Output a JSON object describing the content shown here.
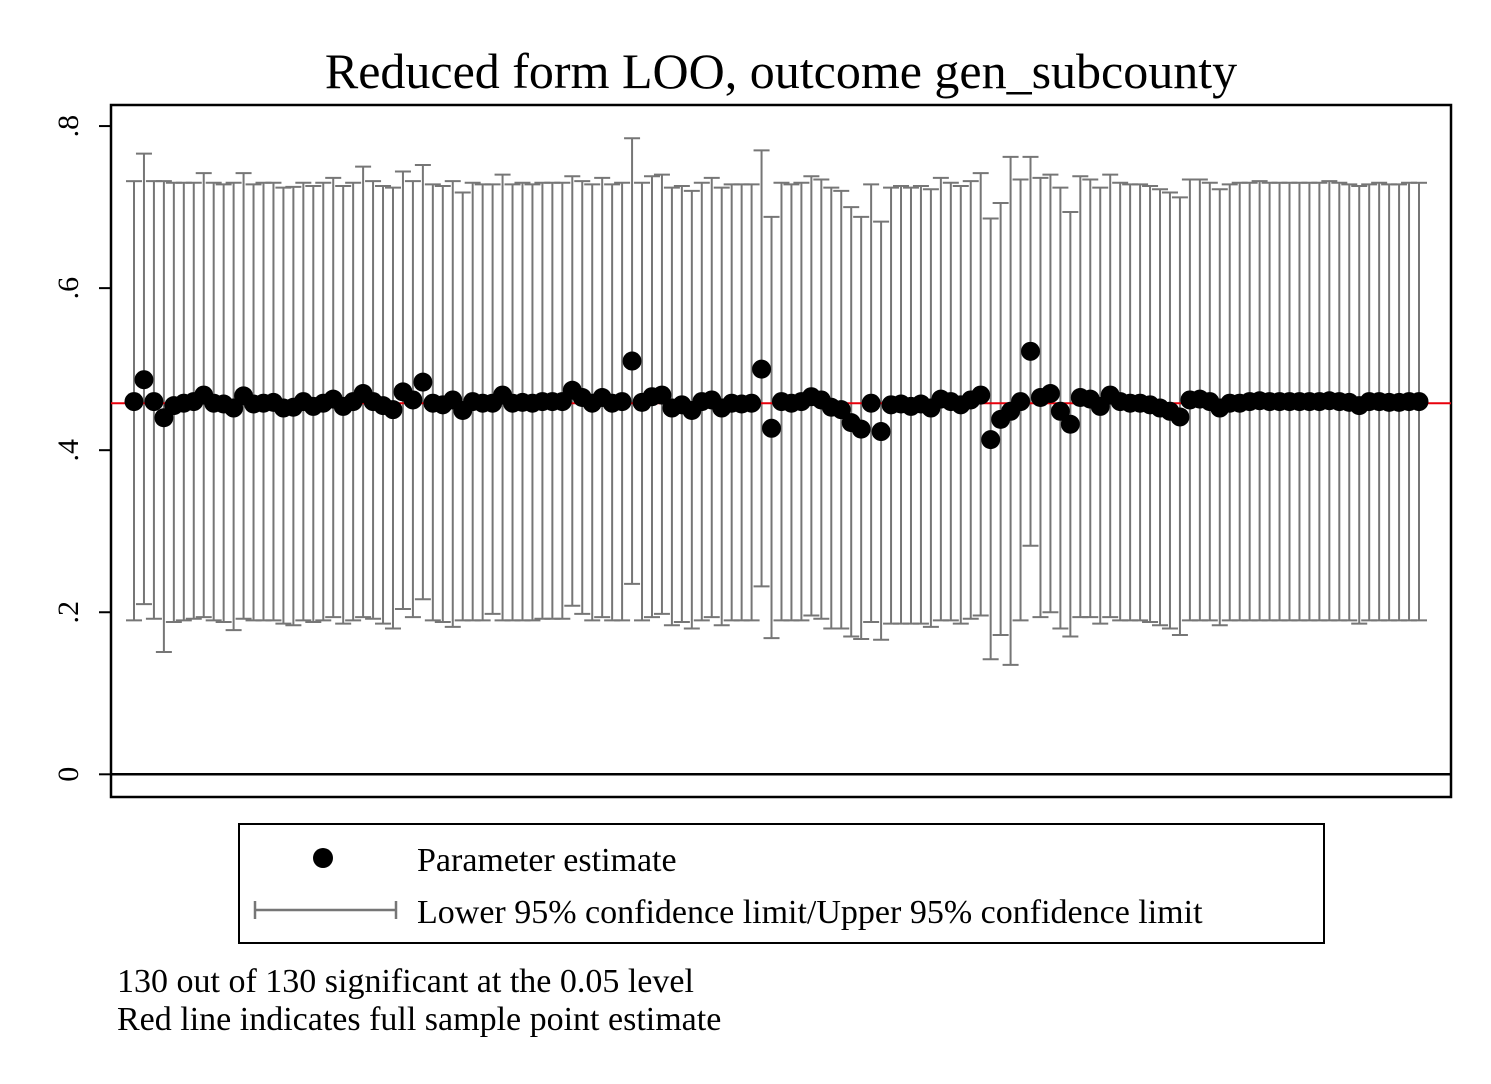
{
  "chart_data": {
    "type": "scatter",
    "title": "Reduced form LOO, outcome gen_subcounty",
    "xlabel": "",
    "ylabel": "",
    "ylim": [
      -0.028,
      0.826
    ],
    "y_ticks": [
      {
        "value": 0,
        "label": "0"
      },
      {
        "value": 0.2,
        "label": ".2"
      },
      {
        "value": 0.4,
        "label": ".4"
      },
      {
        "value": 0.6,
        "label": ".6"
      },
      {
        "value": 0.8,
        "label": ".8"
      }
    ],
    "x_range": [
      1,
      130
    ],
    "reference_line": {
      "value": 0.458,
      "color": "#e8000b"
    },
    "zero_line": {
      "value": 0,
      "color": "#000000"
    },
    "series": [
      {
        "name": "Parameter estimate",
        "marker": "circle",
        "color": "#000000",
        "values": [
          0.46,
          0.487,
          0.46,
          0.44,
          0.455,
          0.458,
          0.46,
          0.468,
          0.458,
          0.457,
          0.452,
          0.467,
          0.457,
          0.458,
          0.459,
          0.452,
          0.453,
          0.46,
          0.454,
          0.458,
          0.463,
          0.454,
          0.46,
          0.47,
          0.46,
          0.455,
          0.45,
          0.472,
          0.462,
          0.484,
          0.458,
          0.456,
          0.462,
          0.449,
          0.46,
          0.458,
          0.458,
          0.468,
          0.458,
          0.459,
          0.458,
          0.46,
          0.46,
          0.46,
          0.474,
          0.465,
          0.458,
          0.465,
          0.458,
          0.46,
          0.51,
          0.459,
          0.466,
          0.468,
          0.452,
          0.456,
          0.449,
          0.46,
          0.462,
          0.452,
          0.458,
          0.457,
          0.458,
          0.5,
          0.427,
          0.46,
          0.458,
          0.46,
          0.466,
          0.462,
          0.453,
          0.45,
          0.434,
          0.426,
          0.458,
          0.423,
          0.456,
          0.457,
          0.454,
          0.457,
          0.452,
          0.463,
          0.46,
          0.456,
          0.462,
          0.468,
          0.413,
          0.438,
          0.448,
          0.46,
          0.522,
          0.465,
          0.47,
          0.448,
          0.432,
          0.465,
          0.463,
          0.454,
          0.468,
          0.46,
          0.458,
          0.458,
          0.456,
          0.452,
          0.448,
          0.441,
          0.462,
          0.463,
          0.46,
          0.452,
          0.458,
          0.458,
          0.46,
          0.461,
          0.46,
          0.46,
          0.46,
          0.46,
          0.46,
          0.46,
          0.461,
          0.46,
          0.459,
          0.455,
          0.46,
          0.46,
          0.459,
          0.459,
          0.46,
          0.46
        ]
      },
      {
        "name": "Lower 95% confidence limit/Upper 95% confidence limit",
        "marker": "capped-range",
        "color": "#767676",
        "lower": [
          0.19,
          0.21,
          0.192,
          0.151,
          0.188,
          0.19,
          0.192,
          0.194,
          0.19,
          0.188,
          0.178,
          0.192,
          0.19,
          0.19,
          0.19,
          0.186,
          0.184,
          0.19,
          0.188,
          0.19,
          0.194,
          0.186,
          0.19,
          0.194,
          0.192,
          0.186,
          0.18,
          0.204,
          0.194,
          0.216,
          0.19,
          0.188,
          0.182,
          0.19,
          0.19,
          0.19,
          0.198,
          0.19,
          0.19,
          0.19,
          0.19,
          0.192,
          0.192,
          0.192,
          0.208,
          0.198,
          0.19,
          0.194,
          0.19,
          0.19,
          0.235,
          0.19,
          0.194,
          0.198,
          0.184,
          0.188,
          0.18,
          0.19,
          0.194,
          0.184,
          0.19,
          0.19,
          0.19,
          0.232,
          0.168,
          0.19,
          0.19,
          0.19,
          0.196,
          0.192,
          0.18,
          0.18,
          0.17,
          0.167,
          0.188,
          0.166,
          0.186,
          0.186,
          0.186,
          0.186,
          0.182,
          0.19,
          0.19,
          0.186,
          0.192,
          0.196,
          0.142,
          0.172,
          0.135,
          0.19,
          0.282,
          0.194,
          0.2,
          0.18,
          0.17,
          0.194,
          0.194,
          0.186,
          0.194,
          0.19,
          0.19,
          0.19,
          0.188,
          0.184,
          0.18,
          0.172,
          0.19,
          0.19,
          0.19,
          0.184,
          0.19,
          0.19,
          0.19,
          0.19,
          0.19,
          0.19,
          0.19,
          0.19,
          0.19,
          0.19,
          0.19,
          0.19,
          0.19,
          0.186,
          0.19,
          0.19,
          0.19,
          0.19,
          0.19,
          0.19
        ],
        "upper": [
          0.732,
          0.766,
          0.732,
          0.732,
          0.73,
          0.73,
          0.73,
          0.742,
          0.73,
          0.728,
          0.73,
          0.742,
          0.728,
          0.73,
          0.73,
          0.724,
          0.725,
          0.73,
          0.726,
          0.73,
          0.736,
          0.726,
          0.73,
          0.75,
          0.732,
          0.726,
          0.724,
          0.744,
          0.732,
          0.752,
          0.728,
          0.726,
          0.732,
          0.718,
          0.73,
          0.728,
          0.728,
          0.74,
          0.728,
          0.73,
          0.728,
          0.73,
          0.73,
          0.73,
          0.738,
          0.732,
          0.728,
          0.736,
          0.728,
          0.73,
          0.785,
          0.73,
          0.738,
          0.74,
          0.724,
          0.726,
          0.72,
          0.73,
          0.736,
          0.724,
          0.728,
          0.728,
          0.728,
          0.77,
          0.688,
          0.73,
          0.728,
          0.73,
          0.738,
          0.734,
          0.724,
          0.72,
          0.7,
          0.688,
          0.728,
          0.682,
          0.724,
          0.726,
          0.724,
          0.726,
          0.722,
          0.736,
          0.73,
          0.726,
          0.732,
          0.742,
          0.686,
          0.705,
          0.762,
          0.734,
          0.762,
          0.736,
          0.74,
          0.724,
          0.694,
          0.738,
          0.734,
          0.724,
          0.74,
          0.73,
          0.728,
          0.728,
          0.726,
          0.722,
          0.718,
          0.712,
          0.734,
          0.734,
          0.73,
          0.722,
          0.728,
          0.73,
          0.73,
          0.732,
          0.73,
          0.73,
          0.73,
          0.73,
          0.73,
          0.73,
          0.732,
          0.73,
          0.728,
          0.726,
          0.728,
          0.73,
          0.728,
          0.728,
          0.73,
          0.73
        ]
      }
    ],
    "legend": {
      "position": "bottom"
    },
    "notes": [
      "130 out of 130 significant at the 0.05 level",
      "Red line indicates full sample point estimate"
    ],
    "grid": false
  }
}
